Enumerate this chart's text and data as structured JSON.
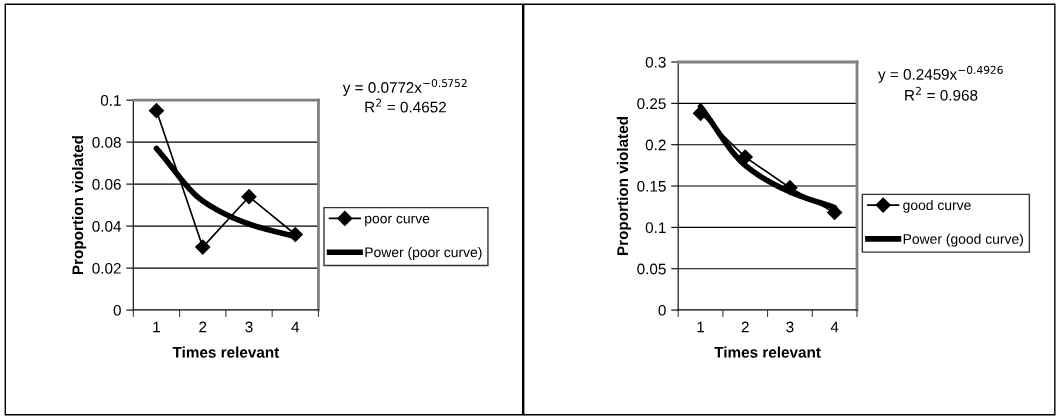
{
  "chart_data": [
    {
      "type": "line",
      "categories": [
        "1",
        "2",
        "3",
        "4"
      ],
      "xlabel": "Times relevant",
      "ylabel": "Proportion violated",
      "series": [
        {
          "name": "poor curve",
          "color": "#000000",
          "values": [
            0.095,
            0.03,
            0.054,
            0.036
          ],
          "marker": "diamond"
        },
        {
          "name": "Power (poor curve)",
          "color": "#000000",
          "values": [
            0.077,
            0.052,
            0.041,
            0.035
          ],
          "marker": "none"
        }
      ],
      "ylim": [
        0,
        0.1
      ],
      "yticks": [
        0,
        0.02,
        0.04,
        0.06,
        0.08,
        0.1
      ],
      "grid": "y",
      "legend": "right",
      "line_style": "solid",
      "annotations": [
        "y = 0.0772x$^{−0.5752}$",
        "R$^{2}$ = 0.4652"
      ]
    },
    {
      "type": "line",
      "categories": [
        "1",
        "2",
        "3",
        "4"
      ],
      "xlabel": "Times relevant",
      "ylabel": "Proportion violated",
      "series": [
        {
          "name": "good curve",
          "color": "#000000",
          "values": [
            0.238,
            0.185,
            0.148,
            0.118
          ],
          "marker": "diamond"
        },
        {
          "name": "Power (good curve)",
          "color": "#000000",
          "values": [
            0.246,
            0.175,
            0.143,
            0.124
          ],
          "marker": "none"
        }
      ],
      "ylim": [
        0,
        0.3
      ],
      "yticks": [
        0,
        0.05,
        0.1,
        0.15,
        0.2,
        0.25,
        0.3
      ],
      "grid": "y",
      "legend": "right",
      "line_style": "solid",
      "annotations": [
        "y = 0.2459x$^{−0.4926}$",
        "R$^{2}$ = 0.968"
      ]
    }
  ]
}
